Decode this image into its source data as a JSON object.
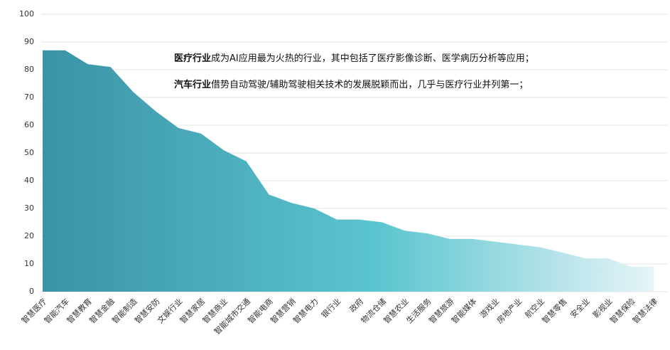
{
  "chart_data": {
    "type": "area",
    "categories": [
      "智慧医疗",
      "智能汽车",
      "智慧教育",
      "智慧金融",
      "智能制造",
      "智慧安防",
      "文娱行业",
      "智慧家居",
      "智慧商业",
      "智能城市交通",
      "智能电商",
      "智慧营销",
      "智慧电力",
      "银行业",
      "政府",
      "物流仓储",
      "智慧农业",
      "生活服务",
      "智慧旅游",
      "智能媒体",
      "游戏业",
      "房地产业",
      "航空业",
      "智慧零售",
      "安全业",
      "影视业",
      "智慧保险",
      "智慧法律"
    ],
    "values": [
      87,
      87,
      82,
      81,
      72,
      65,
      59,
      57,
      51,
      47,
      35,
      32,
      30,
      26,
      26,
      25,
      22,
      21,
      19,
      19,
      18,
      17,
      16,
      14,
      12,
      12,
      9,
      9
    ],
    "color": "#5bc5cf",
    "ylim": [
      0,
      100
    ],
    "yticks": [
      0,
      10,
      20,
      30,
      40,
      50,
      60,
      70,
      80,
      90,
      100
    ],
    "grid": true,
    "annotations": [
      {
        "bold": "医疗行业",
        "text": "成为AI应用最为火热的行业，其中包括了医疗影像诊断、医学病历分析等应用；"
      },
      {
        "bold": "汽车行业",
        "text": "借势自动驾驶/辅助驾驶相关技术的发展脱颖而出，几乎与医疗行业并列第一；"
      }
    ]
  }
}
